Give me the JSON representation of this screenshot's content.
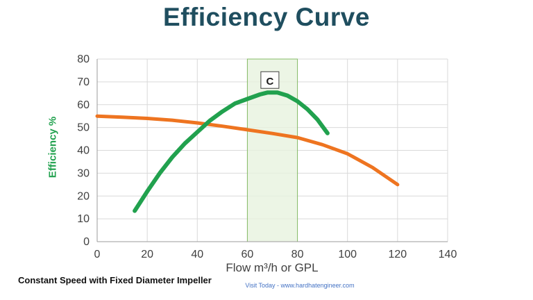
{
  "title": "Efficiency Curve",
  "axis": {
    "xlabel": "Flow m³/h or GPL",
    "ylabel": "Efficiency %"
  },
  "footer": {
    "left_note": "Constant Speed with Fixed Diameter Impeller",
    "credit": "Visit Today - www.hardhatengineer.com"
  },
  "colors": {
    "title": "#1f4e5f",
    "efficiency_curve": "#21a14e",
    "head_curve": "#ee7420",
    "grid": "#d9d9d9",
    "axis_line": "#9b9b9b",
    "tick_text": "#404040",
    "band_fill": "#e7f2de",
    "band_stroke": "#85bb65"
  },
  "chart_data": {
    "type": "line",
    "title": "Efficiency Curve",
    "xlabel": "Flow m³/h or GPL",
    "ylabel": "Efficiency %",
    "xlim": [
      0,
      140
    ],
    "ylim": [
      0,
      80
    ],
    "xticks": [
      0,
      20,
      40,
      60,
      80,
      100,
      120,
      140
    ],
    "yticks": [
      0,
      10,
      20,
      30,
      40,
      50,
      60,
      70,
      80
    ],
    "grid": true,
    "legend": "none",
    "band": {
      "x0": 60,
      "x1": 80,
      "label": "C",
      "label_x": 69,
      "label_y": 70.5
    },
    "series": [
      {
        "name": "head-curve",
        "color": "#ee7420",
        "width": 5,
        "points": [
          [
            0,
            55
          ],
          [
            10,
            54.5
          ],
          [
            20,
            54
          ],
          [
            30,
            53.2
          ],
          [
            40,
            52
          ],
          [
            50,
            50.6
          ],
          [
            60,
            49
          ],
          [
            70,
            47.4
          ],
          [
            80,
            45.6
          ],
          [
            90,
            42.5
          ],
          [
            100,
            38.5
          ],
          [
            110,
            32.5
          ],
          [
            120,
            25
          ]
        ]
      },
      {
        "name": "efficiency-curve",
        "color": "#21a14e",
        "width": 6,
        "points": [
          [
            15,
            13.5
          ],
          [
            20,
            22
          ],
          [
            25,
            30
          ],
          [
            30,
            37
          ],
          [
            35,
            43
          ],
          [
            40,
            48
          ],
          [
            45,
            53
          ],
          [
            50,
            57
          ],
          [
            55,
            60.5
          ],
          [
            60,
            62.5
          ],
          [
            65,
            64.5
          ],
          [
            68,
            65.3
          ],
          [
            72,
            65.3
          ],
          [
            76,
            64
          ],
          [
            80,
            61.5
          ],
          [
            84,
            58
          ],
          [
            88,
            53.5
          ],
          [
            92,
            47.5
          ]
        ]
      }
    ]
  }
}
